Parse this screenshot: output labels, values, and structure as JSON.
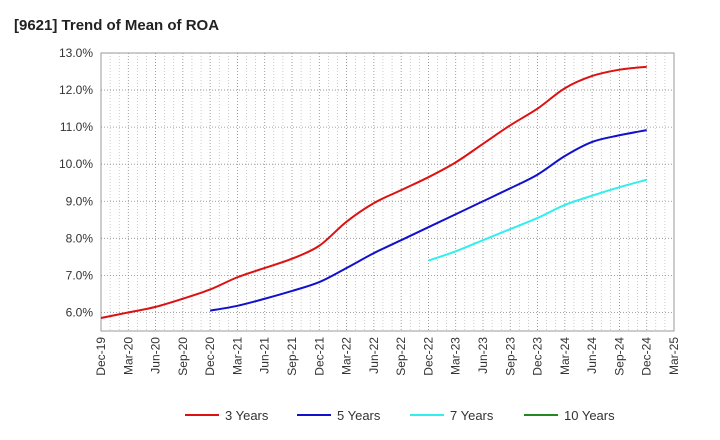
{
  "chart_data": {
    "type": "line",
    "title": "[9621]  Trend of Mean of ROA",
    "xlabel": "",
    "ylabel": "",
    "ylim": [
      5.5,
      13.0
    ],
    "y_ticks": [
      "6.0%",
      "7.0%",
      "8.0%",
      "9.0%",
      "10.0%",
      "11.0%",
      "12.0%",
      "13.0%"
    ],
    "y_tick_values": [
      6,
      7,
      8,
      9,
      10,
      11,
      12,
      13
    ],
    "categories": [
      "Dec-19",
      "Mar-20",
      "Jun-20",
      "Sep-20",
      "Dec-20",
      "Mar-21",
      "Jun-21",
      "Sep-21",
      "Dec-21",
      "Mar-22",
      "Jun-22",
      "Sep-22",
      "Dec-22",
      "Mar-23",
      "Jun-23",
      "Sep-23",
      "Dec-23",
      "Mar-24",
      "Jun-24",
      "Sep-24",
      "Dec-24",
      "Mar-25"
    ],
    "grid": true,
    "legend_position": "bottom",
    "series": [
      {
        "name": "3 Years",
        "color": "#dd1111",
        "values": [
          5.85,
          6.0,
          6.15,
          6.37,
          6.62,
          6.95,
          7.2,
          7.45,
          7.8,
          8.45,
          8.95,
          9.3,
          9.65,
          10.05,
          10.55,
          11.05,
          11.5,
          12.05,
          12.38,
          12.55,
          12.63,
          null
        ]
      },
      {
        "name": "5 Years",
        "color": "#1111cc",
        "values": [
          null,
          null,
          null,
          null,
          6.05,
          6.18,
          6.37,
          6.58,
          6.82,
          7.2,
          7.6,
          7.95,
          8.3,
          8.65,
          9.0,
          9.35,
          9.72,
          10.22,
          10.6,
          10.78,
          10.92,
          null
        ]
      },
      {
        "name": "7 Years",
        "color": "#33eeee",
        "values": [
          null,
          null,
          null,
          null,
          null,
          null,
          null,
          null,
          null,
          null,
          null,
          null,
          7.4,
          7.65,
          7.95,
          8.25,
          8.55,
          8.9,
          9.15,
          9.38,
          9.58,
          null
        ]
      },
      {
        "name": "10 Years",
        "color": "#228822",
        "values": [
          null,
          null,
          null,
          null,
          null,
          null,
          null,
          null,
          null,
          null,
          null,
          null,
          null,
          null,
          null,
          null,
          null,
          null,
          null,
          null,
          null,
          null
        ]
      }
    ]
  }
}
